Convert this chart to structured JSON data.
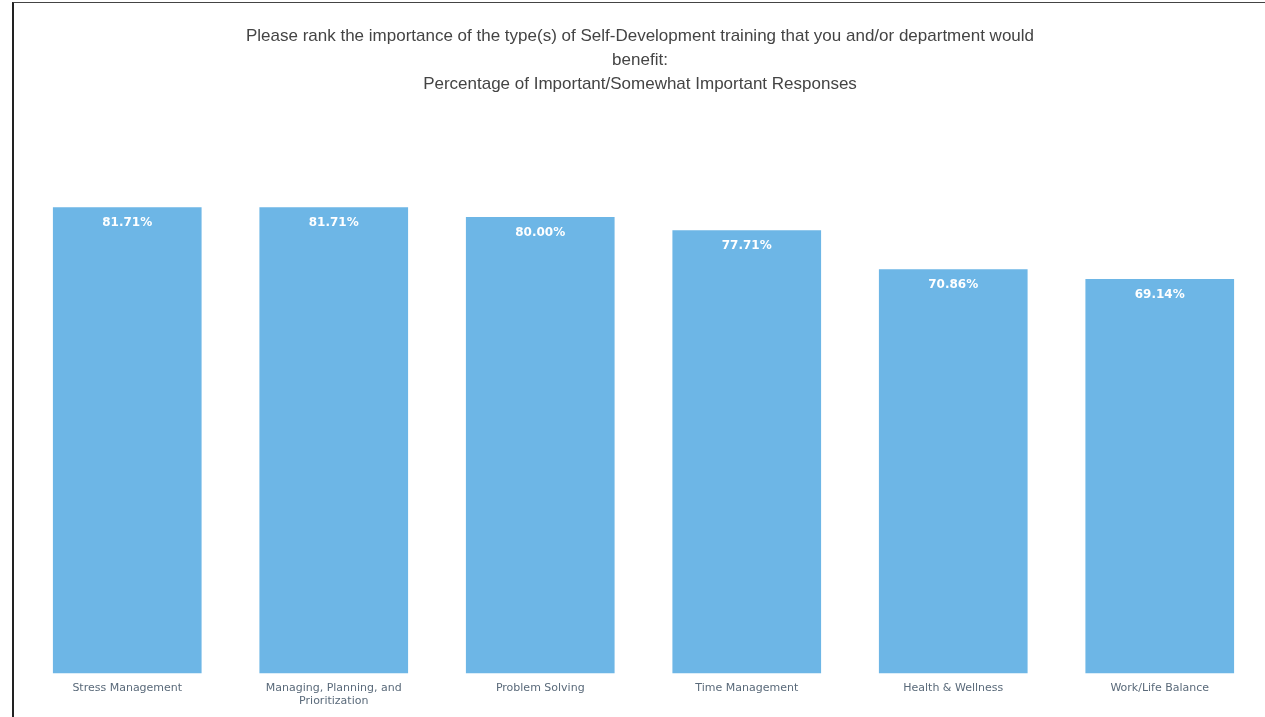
{
  "chart_data": {
    "type": "bar",
    "title": "Please rank the importance of the type(s) of Self-Development training that you and/or department would benefit:",
    "subtitle": "Percentage of Important/Somewhat Important Responses",
    "categories": [
      "Stress Management",
      "Managing, Planning, and Prioritization",
      "Problem Solving",
      "Time Management",
      "Health & Wellness",
      "Work/Life Balance"
    ],
    "values": [
      81.71,
      81.71,
      80.0,
      77.71,
      70.86,
      69.14
    ],
    "value_labels": [
      "81.71%",
      "81.71%",
      "80.00%",
      "77.71%",
      "70.86%",
      "69.14%"
    ],
    "color": "#6db6e6",
    "grid": false,
    "tick_labels": "x"
  }
}
